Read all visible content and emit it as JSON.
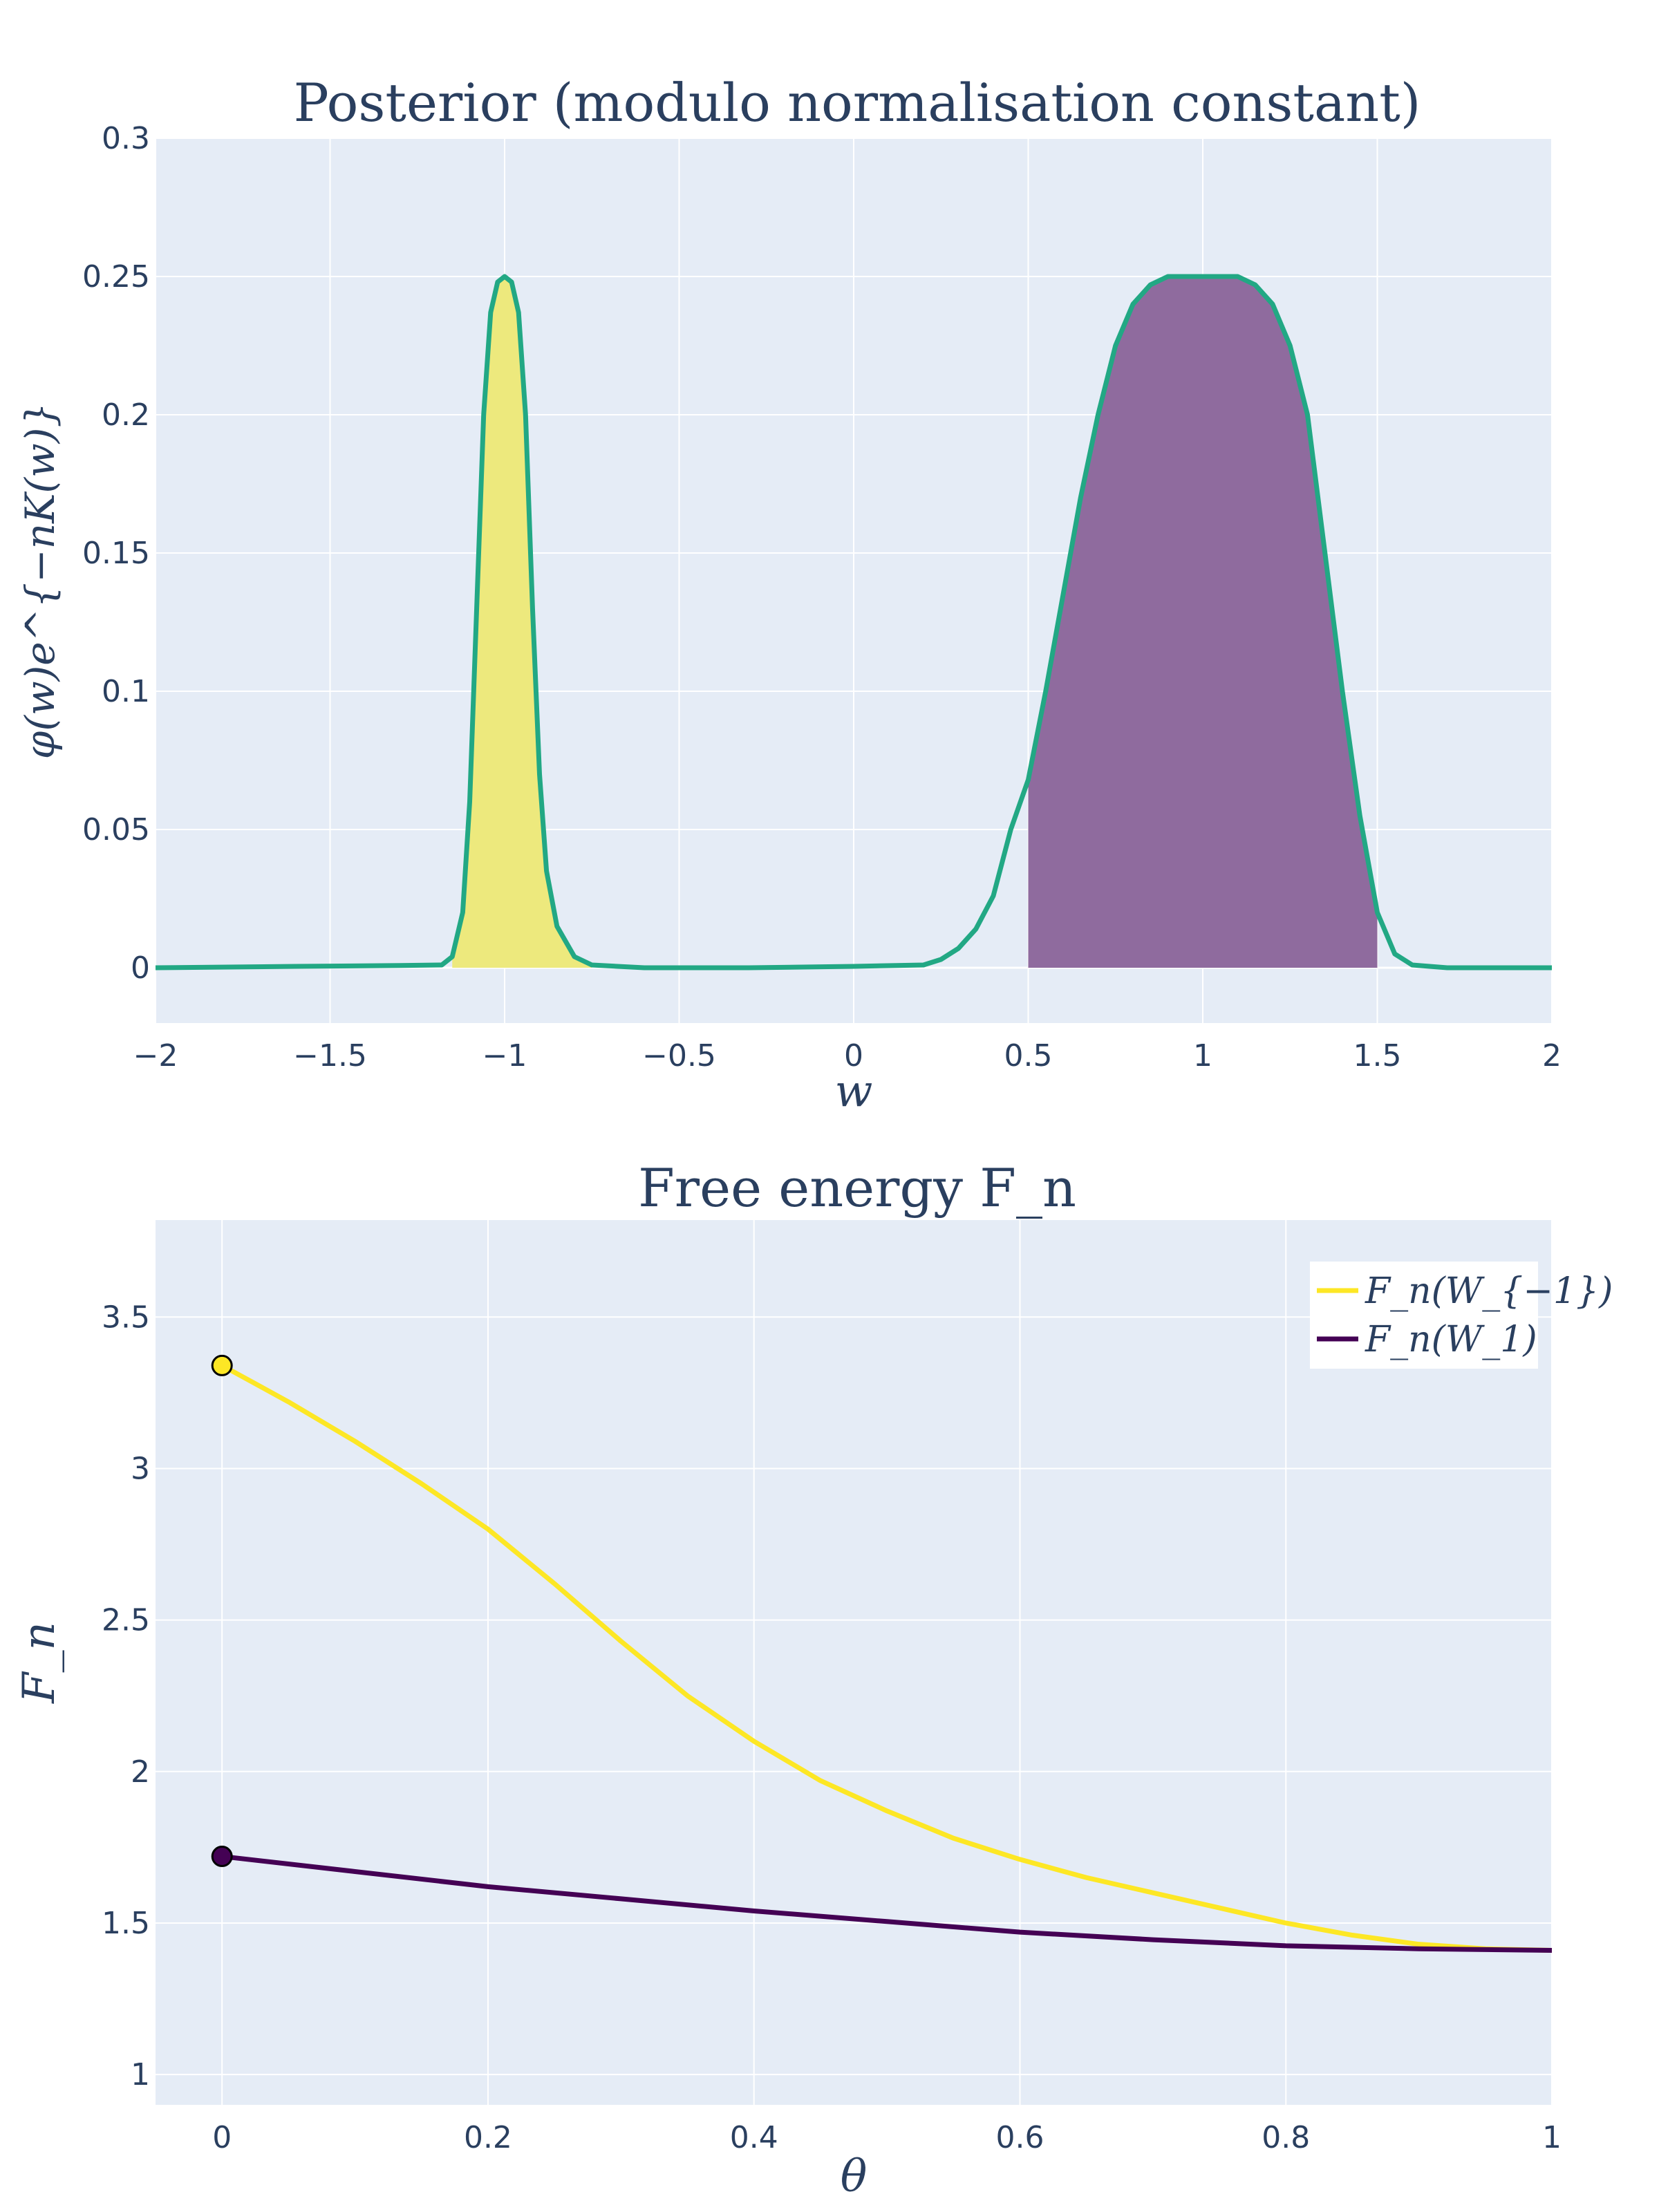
{
  "chart_data": [
    {
      "type": "area",
      "title": "Posterior (modulo normalisation constant)",
      "xlabel": "w",
      "ylabel": "φ(w)e^{−nK(w)}",
      "xlim": [
        -2,
        2
      ],
      "ylim": [
        -0.02,
        0.3
      ],
      "x_ticks": [
        -2,
        -1.5,
        -1,
        -0.5,
        0,
        0.5,
        1,
        1.5,
        2
      ],
      "x_tick_labels": [
        "−2",
        "−1.5",
        "−1",
        "−0.5",
        "0",
        "0.5",
        "1",
        "1.5",
        "2"
      ],
      "y_ticks": [
        0,
        0.05,
        0.1,
        0.15,
        0.2,
        0.25,
        0.3
      ],
      "y_tick_labels": [
        "0",
        "0.05",
        "0.1",
        "0.15",
        "0.2",
        "0.25",
        "0.3"
      ],
      "grid": true,
      "series": [
        {
          "color": "#22a884",
          "points": [
            [
              -2.0,
              0.0
            ],
            [
              -1.6,
              0.0005
            ],
            [
              -1.3,
              0.0008
            ],
            [
              -1.18,
              0.001
            ],
            [
              -1.15,
              0.004
            ],
            [
              -1.12,
              0.02
            ],
            [
              -1.1,
              0.06
            ],
            [
              -1.08,
              0.13
            ],
            [
              -1.06,
              0.2
            ],
            [
              -1.04,
              0.237
            ],
            [
              -1.02,
              0.248
            ],
            [
              -1.0,
              0.25
            ],
            [
              -0.98,
              0.248
            ],
            [
              -0.96,
              0.237
            ],
            [
              -0.94,
              0.2
            ],
            [
              -0.92,
              0.13
            ],
            [
              -0.9,
              0.07
            ],
            [
              -0.88,
              0.035
            ],
            [
              -0.85,
              0.015
            ],
            [
              -0.8,
              0.004
            ],
            [
              -0.75,
              0.001
            ],
            [
              -0.6,
              0.0
            ],
            [
              -0.3,
              0.0
            ],
            [
              0.0,
              0.0005
            ],
            [
              0.2,
              0.001
            ],
            [
              0.25,
              0.003
            ],
            [
              0.3,
              0.007
            ],
            [
              0.35,
              0.014
            ],
            [
              0.4,
              0.026
            ],
            [
              0.45,
              0.05
            ],
            [
              0.5,
              0.068
            ],
            [
              0.55,
              0.1
            ],
            [
              0.6,
              0.135
            ],
            [
              0.65,
              0.17
            ],
            [
              0.7,
              0.2
            ],
            [
              0.75,
              0.225
            ],
            [
              0.8,
              0.24
            ],
            [
              0.85,
              0.247
            ],
            [
              0.9,
              0.25
            ],
            [
              1.0,
              0.25
            ],
            [
              1.1,
              0.25
            ],
            [
              1.15,
              0.247
            ],
            [
              1.2,
              0.24
            ],
            [
              1.25,
              0.225
            ],
            [
              1.3,
              0.2
            ],
            [
              1.35,
              0.15
            ],
            [
              1.4,
              0.1
            ],
            [
              1.45,
              0.055
            ],
            [
              1.5,
              0.02
            ],
            [
              1.55,
              0.005
            ],
            [
              1.6,
              0.001
            ],
            [
              1.7,
              0.0
            ],
            [
              2.0,
              0.0
            ]
          ]
        }
      ],
      "fill_regions": [
        {
          "x_range": [
            -1.15,
            -0.75
          ],
          "color": "#f0e442",
          "fill_color": "#ede97d"
        },
        {
          "x_range": [
            0.5,
            1.5
          ],
          "color": "#440154",
          "fill_color": "#8f6b9e"
        }
      ]
    },
    {
      "type": "line",
      "title": "Free energy F_n",
      "xlabel": "θ",
      "ylabel": "F_n",
      "xlim": [
        -0.05,
        1
      ],
      "ylim": [
        0.9,
        3.82
      ],
      "x_ticks": [
        0,
        0.2,
        0.4,
        0.6,
        0.8,
        1
      ],
      "x_tick_labels": [
        "0",
        "0.2",
        "0.4",
        "0.6",
        "0.8",
        "1"
      ],
      "y_ticks": [
        1,
        1.5,
        2,
        2.5,
        3,
        3.5
      ],
      "y_tick_labels": [
        "1",
        "1.5",
        "2",
        "2.5",
        "3",
        "3.5"
      ],
      "grid": true,
      "legend_position": "top-right",
      "series": [
        {
          "name": "F_n(W_{−1})",
          "color": "#fde725",
          "x": [
            0,
            0.05,
            0.1,
            0.15,
            0.2,
            0.25,
            0.3,
            0.35,
            0.4,
            0.45,
            0.5,
            0.55,
            0.6,
            0.65,
            0.7,
            0.75,
            0.8,
            0.85,
            0.9,
            0.95,
            1.0
          ],
          "y": [
            3.34,
            3.22,
            3.09,
            2.95,
            2.8,
            2.62,
            2.43,
            2.25,
            2.1,
            1.97,
            1.87,
            1.78,
            1.71,
            1.65,
            1.6,
            1.55,
            1.5,
            1.46,
            1.43,
            1.415,
            1.41
          ]
        },
        {
          "name": "F_n(W_1)",
          "color": "#440154",
          "x": [
            0,
            0.1,
            0.2,
            0.3,
            0.4,
            0.5,
            0.6,
            0.7,
            0.8,
            0.9,
            1.0
          ],
          "y": [
            1.72,
            1.67,
            1.62,
            1.58,
            1.54,
            1.505,
            1.47,
            1.445,
            1.425,
            1.415,
            1.41
          ]
        }
      ],
      "markers": [
        {
          "x": 0,
          "y": 3.34,
          "color": "#fde725"
        },
        {
          "x": 0,
          "y": 1.72,
          "color": "#440154"
        }
      ]
    }
  ]
}
